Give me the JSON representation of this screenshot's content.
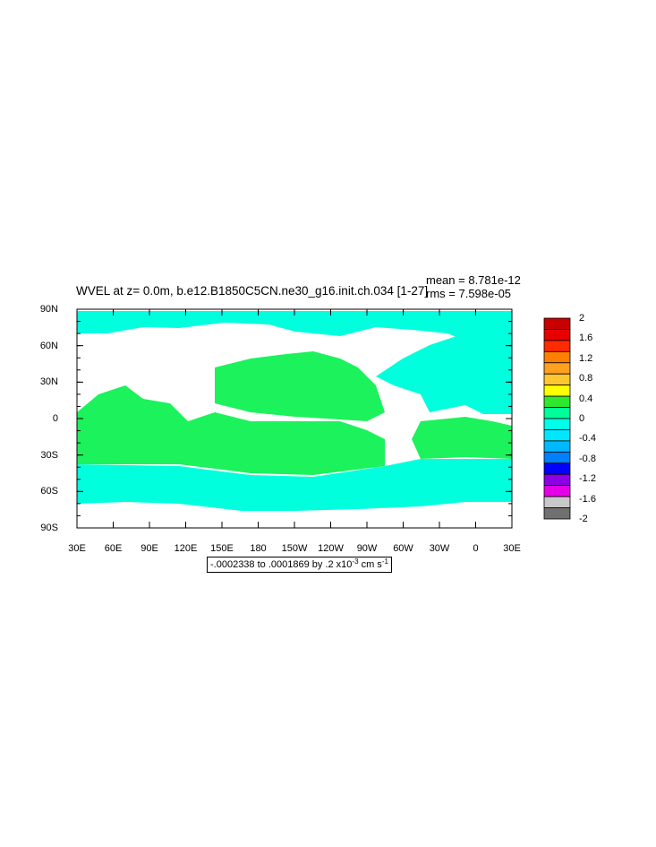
{
  "header": {
    "title": "WVEL at z=   0.0m, b.e12.B1850C5CN.ne30_g16.init.ch.034 [1-27]",
    "mean": "mean = 8.781e-12",
    "rms": "rms = 7.598e-05"
  },
  "axes": {
    "lat_labels": [
      "90N",
      "60N",
      "30N",
      "0",
      "30S",
      "60S",
      "90S"
    ],
    "lon_labels": [
      "30E",
      "60E",
      "90E",
      "120E",
      "150E",
      "180",
      "150W",
      "120W",
      "90W",
      "60W",
      "30W",
      "0",
      "30E"
    ]
  },
  "range": {
    "prefix": "-.0002338 to .0001869 by .2 x10",
    "exp": "-3",
    "units": " cm s",
    "unit_exp": "-1"
  },
  "colorbar": {
    "labels": [
      "2",
      "1.6",
      "1.2",
      "0.8",
      "0.4",
      "0",
      "-0.4",
      "-0.8",
      "-1.2",
      "-1.6",
      "-2"
    ],
    "colors": [
      "#c80000",
      "#e60000",
      "#ff2a00",
      "#ff7f00",
      "#ffa020",
      "#ffc830",
      "#ffff00",
      "#2ee82e",
      "#00ff99",
      "#00ffe8",
      "#00e6ff",
      "#00b8ff",
      "#0080ff",
      "#0000ff",
      "#8c00e6",
      "#e600e6",
      "#c8c8c8",
      "#707070"
    ]
  },
  "map_colors": {
    "pacific_atlantic_band": "#1cf25c",
    "polar_southern": "#00ffdd",
    "land": "#ffffff"
  }
}
